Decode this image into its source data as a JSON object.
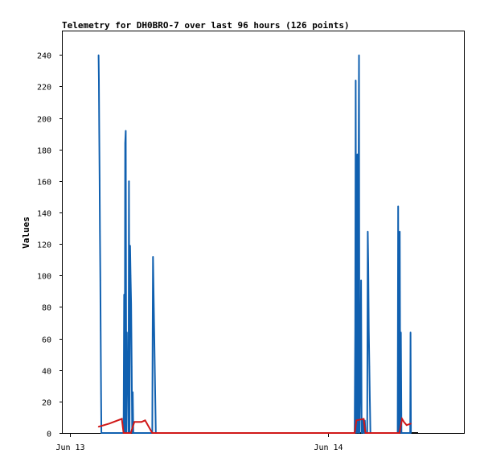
{
  "chart_data": {
    "type": "line",
    "title": "Telemetry for DH0BRO-7 over last 96 hours (126 points)",
    "ylabel": "Values",
    "xlabel": "",
    "ylim": [
      0,
      255
    ],
    "yticks": [
      0,
      20,
      40,
      60,
      80,
      100,
      120,
      140,
      160,
      180,
      200,
      220,
      240
    ],
    "xlim": [
      "2024-06-12 23:20",
      "2024-06-14 12:40"
    ],
    "xticks": [
      {
        "label": "Jun 13",
        "value": "2024-06-13 00:00"
      },
      {
        "label": "Jun 14",
        "value": "2024-06-14 00:00"
      }
    ],
    "grid": false,
    "legend": "none",
    "colors": {
      "series_blue": "#1060b0",
      "series_red": "#d01818",
      "zero_line": "#000000",
      "axes": "#000000"
    },
    "series": [
      {
        "color": "#1060b0",
        "x": [
          "2024-06-13 02:40",
          "2024-06-13 02:42",
          "2024-06-13 02:44",
          "2024-06-13 02:46",
          "2024-06-13 02:48",
          "2024-06-13 02:50",
          "2024-06-13 02:52",
          "2024-06-13 02:54",
          "2024-06-13 02:56",
          "2024-06-13 02:58",
          "2024-06-13 05:00",
          "2024-06-13 05:03",
          "2024-06-13 05:06",
          "2024-06-13 05:09",
          "2024-06-13 05:12",
          "2024-06-13 05:15",
          "2024-06-13 05:18",
          "2024-06-13 05:21",
          "2024-06-13 05:24",
          "2024-06-13 05:27",
          "2024-06-13 05:30",
          "2024-06-13 05:33",
          "2024-06-13 05:36",
          "2024-06-13 05:39",
          "2024-06-13 05:42",
          "2024-06-13 05:45",
          "2024-06-13 05:48",
          "2024-06-13 05:51",
          "2024-06-13 05:54",
          "2024-06-13 07:40",
          "2024-06-13 07:42",
          "2024-06-13 07:44",
          "2024-06-13 08:00",
          "2024-06-14 02:20",
          "2024-06-14 02:30",
          "2024-06-14 02:33",
          "2024-06-14 02:36",
          "2024-06-14 02:39",
          "2024-06-14 02:42",
          "2024-06-14 02:45",
          "2024-06-14 02:48",
          "2024-06-14 02:51",
          "2024-06-14 02:54",
          "2024-06-14 02:57",
          "2024-06-14 03:00",
          "2024-06-14 03:03",
          "2024-06-14 03:06",
          "2024-06-14 03:09",
          "2024-06-14 03:12",
          "2024-06-14 03:15",
          "2024-06-14 03:18",
          "2024-06-14 03:21",
          "2024-06-14 03:24",
          "2024-06-14 03:27",
          "2024-06-14 03:30",
          "2024-06-14 03:40",
          "2024-06-14 03:43",
          "2024-06-14 03:46",
          "2024-06-14 03:49",
          "2024-06-14 03:52",
          "2024-06-14 03:55",
          "2024-06-14 03:58",
          "2024-06-14 06:30",
          "2024-06-14 06:33",
          "2024-06-14 06:36",
          "2024-06-14 06:39",
          "2024-06-14 06:42",
          "2024-06-14 06:45",
          "2024-06-14 06:48",
          "2024-06-14 06:51",
          "2024-06-14 07:40",
          "2024-06-14 07:42",
          "2024-06-14 07:44"
        ],
        "y": [
          240,
          224,
          193,
          160,
          128,
          97,
          65,
          25,
          0,
          0,
          0,
          88,
          0,
          184,
          192,
          0,
          64,
          25,
          40,
          0,
          160,
          0,
          119,
          100,
          82,
          42,
          0,
          26,
          0,
          0,
          56,
          112,
          0,
          0,
          0,
          65,
          224,
          0,
          176,
          177,
          0,
          128,
          240,
          0,
          24,
          48,
          97,
          0,
          8,
          9,
          0,
          0,
          5,
          8,
          0,
          0,
          128,
          107,
          65,
          42,
          21,
          0,
          0,
          144,
          0,
          8,
          128,
          0,
          64,
          0,
          0,
          64,
          0
        ]
      },
      {
        "color": "#d01818",
        "x": [
          "2024-06-13 02:40",
          "2024-06-13 03:40",
          "2024-06-13 04:50",
          "2024-06-13 05:00",
          "2024-06-13 05:40",
          "2024-06-13 06:00",
          "2024-06-13 06:40",
          "2024-06-13 07:00",
          "2024-06-13 07:40",
          "2024-06-13 07:44",
          "2024-06-14 02:30",
          "2024-06-14 02:40",
          "2024-06-14 03:20",
          "2024-06-14 03:30",
          "2024-06-14 06:40",
          "2024-06-14 06:55",
          "2024-06-14 07:05",
          "2024-06-14 07:20",
          "2024-06-14 07:44"
        ],
        "y": [
          4,
          6,
          9,
          0,
          0,
          7,
          7,
          8,
          0,
          0,
          0,
          8,
          9,
          0,
          0,
          9,
          7,
          5,
          6
        ]
      }
    ]
  }
}
